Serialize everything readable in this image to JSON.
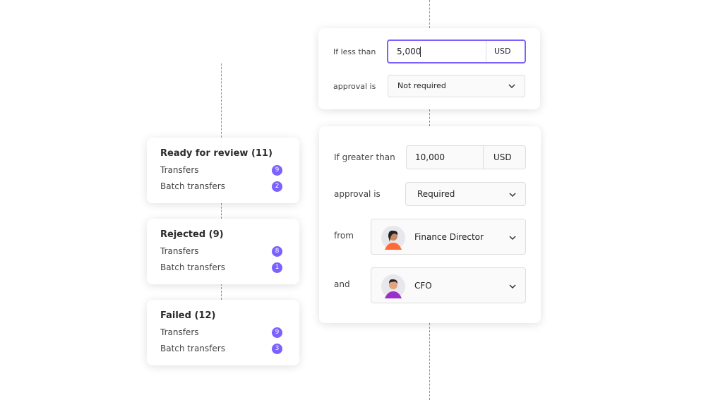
{
  "status_cards": [
    {
      "title": "Ready for review (11)",
      "rows": [
        {
          "label": "Transfers",
          "count": 9
        },
        {
          "label": "Batch transfers",
          "count": 2
        }
      ]
    },
    {
      "title": "Rejected (9)",
      "rows": [
        {
          "label": "Transfers",
          "count": 8
        },
        {
          "label": "Batch transfers",
          "count": 1
        }
      ]
    },
    {
      "title": "Failed (12)",
      "rows": [
        {
          "label": "Transfers",
          "count": 9
        },
        {
          "label": "Batch transfers",
          "count": 3
        }
      ]
    }
  ],
  "rule_less": {
    "condition": "If less than",
    "amount": "5,000",
    "currency": "USD",
    "approval_label": "approval is",
    "approval": "Not required"
  },
  "rule_greater": {
    "condition": "If greater than",
    "amount": "10,000",
    "currency": "USD",
    "approval_label": "approval is",
    "approval": "Required",
    "approvers": [
      {
        "connector": "from",
        "role": "Finance Director"
      },
      {
        "connector": "and",
        "role": "CFO"
      }
    ]
  }
}
